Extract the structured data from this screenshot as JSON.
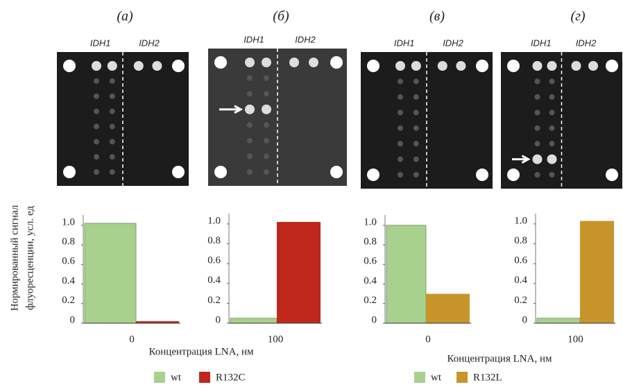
{
  "y_label": [
    "Нормированный сигнал",
    "флуоресценции, усл. ед"
  ],
  "chart_data": [
    {
      "type": "bar",
      "panel": "(а)",
      "image_labels": [
        "IDH1",
        "IDH2"
      ],
      "categories": [
        "0"
      ],
      "xlabel": "Концентрация LNA, нм",
      "series": [
        {
          "name": "wt",
          "color": "#a9d18e",
          "values": [
            1.02
          ]
        },
        {
          "name": "R132C",
          "color": "#c0281c",
          "values": [
            0.02
          ]
        }
      ],
      "ylim": [
        0,
        1.1
      ],
      "yticks": [
        0,
        0.2,
        0.4,
        0.6,
        0.8,
        {
          "value": 1,
          "label": "1.0"
        }
      ]
    },
    {
      "type": "bar",
      "panel": "(б)",
      "image_labels": [
        "IDH1",
        "IDH2"
      ],
      "categories": [
        "100"
      ],
      "series": [
        {
          "color": "#a9d18e",
          "values": [
            0.05
          ]
        },
        {
          "color": "#c0281c",
          "values": [
            1.02
          ]
        }
      ],
      "ylim": [
        0,
        1.1
      ],
      "yticks": [
        0,
        0.2,
        0.4,
        0.6,
        0.8,
        {
          "value": 1,
          "label": "1.0"
        }
      ]
    },
    {
      "type": "bar",
      "panel": "(в)",
      "image_labels": [
        "IDH1",
        "IDH2"
      ],
      "categories": [
        "0"
      ],
      "xlabel": "Концентрация LNA, нм",
      "series": [
        {
          "name": "wt",
          "color": "#a9d18e",
          "values": [
            1.0
          ]
        },
        {
          "name": "R132L",
          "color": "#c8952b",
          "values": [
            0.3
          ]
        }
      ],
      "ylim": [
        0,
        1.1
      ],
      "yticks": [
        0,
        0.2,
        0.4,
        0.6,
        0.8,
        {
          "value": 1,
          "label": "1.0"
        }
      ]
    },
    {
      "type": "bar",
      "panel": "(г)",
      "image_labels": [
        "IDH1",
        "IDH2"
      ],
      "categories": [
        "100"
      ],
      "series": [
        {
          "color": "#a9d18e",
          "values": [
            0.05
          ]
        },
        {
          "color": "#c8952b",
          "values": [
            1.03
          ]
        }
      ],
      "ylim": [
        0,
        1.1
      ],
      "yticks": [
        0,
        0.2,
        0.4,
        0.6,
        0.8,
        {
          "value": 1,
          "label": "1.0"
        }
      ]
    }
  ]
}
